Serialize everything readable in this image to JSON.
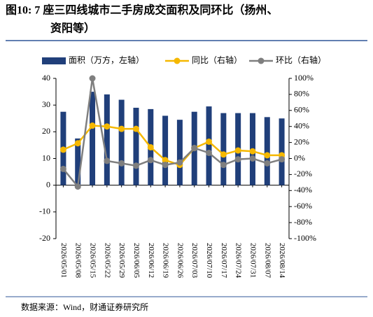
{
  "chart_data": {
    "type": "bar-line",
    "title_line1": "图10: 7 座三四线城市二手房成交面积及同环比（扬州、",
    "title_line2": "资阳等）",
    "source": "数据来源：Wind，财通证券研究所",
    "categories": [
      "2026/05/01",
      "2026/05/08",
      "2026/05/15",
      "2026/05/22",
      "2026/05/29",
      "2026/06/05",
      "2026/06/12",
      "2026/06/19",
      "2026/06/26",
      "2026/07/03",
      "2026/07/10",
      "2026/07/17",
      "2026/07/24",
      "2026/07/31",
      "2026/08/07",
      "2026/08/14"
    ],
    "series": [
      {
        "name": "面积（万方，左轴）",
        "color": "#203f7a",
        "type": "bar",
        "values": [
          27.5,
          17.5,
          35,
          34,
          32,
          29,
          28.5,
          26,
          24.5,
          27.5,
          29.5,
          27,
          27,
          27,
          25.5,
          25
        ]
      },
      {
        "name": "同比（右轴）",
        "color": "#f5b800",
        "type": "line",
        "axis": "y2",
        "values": [
          11,
          19,
          41,
          40,
          37,
          37,
          14,
          -2,
          -8,
          13,
          21,
          5,
          10,
          9,
          4,
          4
        ]
      },
      {
        "name": "环比（右轴）",
        "color": "#7f7f7f",
        "type": "line",
        "axis": "y2",
        "values": [
          -13,
          -35,
          100,
          -3,
          -6,
          -9,
          -2,
          -8,
          -5,
          13,
          7,
          -8,
          -1,
          0,
          -6,
          -1
        ]
      }
    ],
    "ylim": [
      -20,
      40
    ],
    "yticks": [
      -20,
      -10,
      0,
      10,
      20,
      30,
      40
    ],
    "y2lim": [
      -100,
      100
    ],
    "y2ticks": [
      {
        "value": -100,
        "label": "-100%"
      },
      {
        "value": -80,
        "label": "-80%"
      },
      {
        "value": -60,
        "label": "-60%"
      },
      {
        "value": -40,
        "label": "-40%"
      },
      {
        "value": -20,
        "label": "-20%"
      },
      {
        "value": 0,
        "label": "0%"
      },
      {
        "value": 20,
        "label": "20%"
      },
      {
        "value": 40,
        "label": "40%"
      },
      {
        "value": 60,
        "label": "60%"
      },
      {
        "value": 80,
        "label": "80%"
      },
      {
        "value": 100,
        "label": "100%"
      }
    ]
  }
}
